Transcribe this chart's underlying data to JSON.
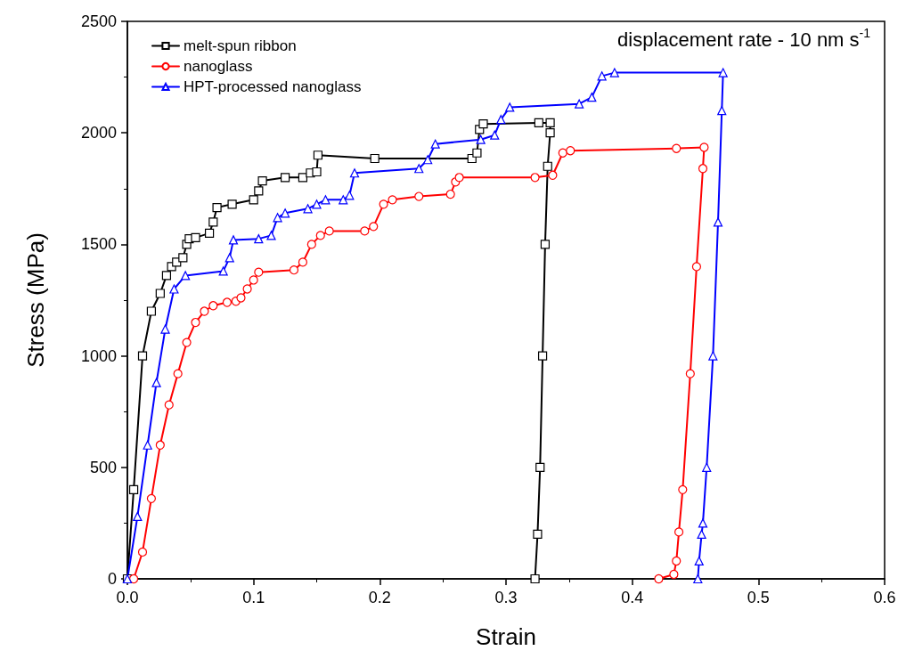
{
  "chart_data": {
    "type": "line",
    "xlabel": "Strain",
    "ylabel": "Stress (MPa)",
    "annotations": [
      "displacement rate - 10 nm s$^{-1}$"
    ],
    "xlim": [
      0,
      0.6
    ],
    "xticks": [
      {
        "value": 0,
        "label": "0.0"
      },
      0.1,
      0.2,
      0.3,
      0.4,
      0.5,
      0.6
    ],
    "ylim": [
      0,
      2500
    ],
    "yticks": [
      0,
      500,
      1000,
      1500,
      2000,
      2500
    ],
    "grid": false,
    "legend": "top left",
    "line_style": "solid",
    "series": [
      {
        "name": "melt-spun ribbon",
        "color": "#000000",
        "marker": "square",
        "x": [
          0,
          0.005,
          0.012,
          0.019,
          0.026,
          0.031,
          0.035,
          0.039,
          0.044,
          0.047,
          0.049,
          0.054,
          0.065,
          0.068,
          0.071,
          0.083,
          0.1,
          0.104,
          0.107,
          0.125,
          0.139,
          0.145,
          0.15,
          0.151,
          0.196,
          0.273,
          0.277,
          0.279,
          0.282,
          0.326,
          0.335,
          0.335,
          0.333,
          0.331,
          0.329,
          0.327,
          0.325,
          0.323
        ],
        "values": [
          0,
          400,
          1000,
          1200,
          1280,
          1360,
          1400,
          1420,
          1440,
          1500,
          1525,
          1530,
          1550,
          1600,
          1665,
          1680,
          1700,
          1740,
          1785,
          1800,
          1800,
          1820,
          1825,
          1900,
          1885,
          1885,
          1910,
          2015,
          2040,
          2045,
          2045,
          2000,
          1850,
          1500,
          1000,
          500,
          200,
          0
        ]
      },
      {
        "name": "nanoglass",
        "color": "#ff0000",
        "marker": "circle",
        "x": [
          0.005,
          0.012,
          0.019,
          0.026,
          0.033,
          0.04,
          0.047,
          0.054,
          0.061,
          0.068,
          0.079,
          0.086,
          0.09,
          0.095,
          0.1,
          0.104,
          0.132,
          0.139,
          0.146,
          0.153,
          0.16,
          0.188,
          0.195,
          0.203,
          0.21,
          0.231,
          0.256,
          0.26,
          0.263,
          0.323,
          0.337,
          0.345,
          0.351,
          0.435,
          0.457,
          0.456,
          0.451,
          0.446,
          0.44,
          0.437,
          0.435,
          0.433,
          0.421
        ],
        "values": [
          0,
          120,
          360,
          600,
          780,
          920,
          1060,
          1150,
          1200,
          1225,
          1240,
          1245,
          1260,
          1300,
          1340,
          1375,
          1385,
          1420,
          1500,
          1540,
          1560,
          1560,
          1580,
          1680,
          1700,
          1715,
          1725,
          1780,
          1800,
          1800,
          1810,
          1910,
          1920,
          1930,
          1935,
          1840,
          1400,
          920,
          400,
          210,
          80,
          20,
          0
        ]
      },
      {
        "name": "HPT-processed nanoglass",
        "color": "#0000ff",
        "marker": "triangle",
        "x": [
          0,
          0.008,
          0.016,
          0.023,
          0.03,
          0.037,
          0.046,
          0.076,
          0.081,
          0.084,
          0.104,
          0.114,
          0.119,
          0.125,
          0.143,
          0.15,
          0.157,
          0.171,
          0.176,
          0.18,
          0.231,
          0.238,
          0.244,
          0.28,
          0.291,
          0.296,
          0.303,
          0.358,
          0.368,
          0.376,
          0.386,
          0.472,
          0.471,
          0.468,
          0.464,
          0.459,
          0.456,
          0.455,
          0.453,
          0.452
        ],
        "values": [
          0,
          280,
          600,
          880,
          1120,
          1300,
          1360,
          1380,
          1440,
          1520,
          1525,
          1540,
          1620,
          1640,
          1660,
          1680,
          1700,
          1700,
          1720,
          1820,
          1840,
          1880,
          1950,
          1970,
          1990,
          2060,
          2115,
          2130,
          2160,
          2255,
          2270,
          2270,
          2100,
          1600,
          1000,
          500,
          250,
          200,
          80,
          0
        ]
      }
    ]
  }
}
